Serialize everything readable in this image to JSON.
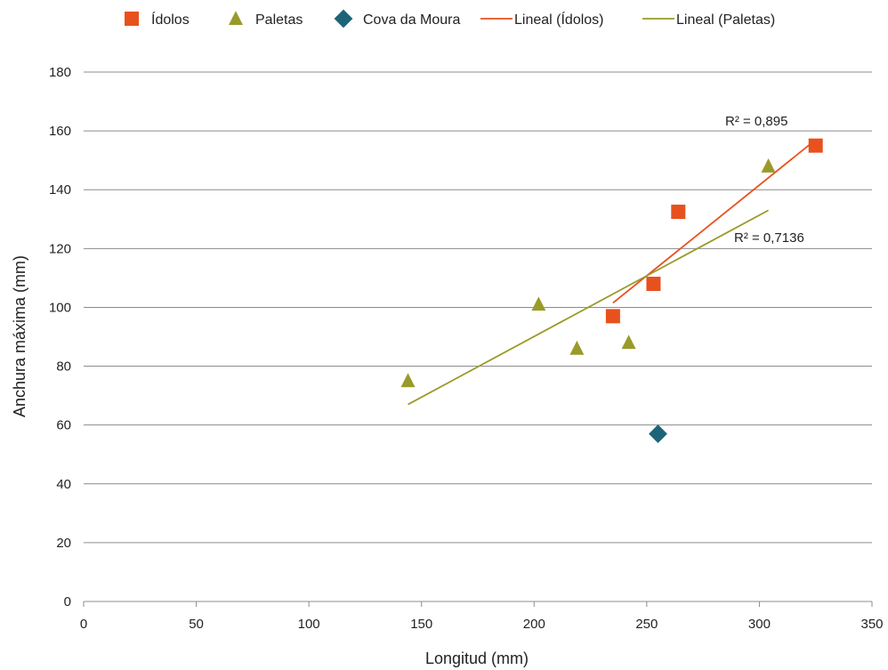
{
  "chart_data": {
    "type": "scatter",
    "xlabel": "Longitud (mm)",
    "ylabel": "Anchura máxima (mm)",
    "xlim": [
      0,
      350
    ],
    "ylim": [
      0,
      180
    ],
    "x_ticks": [
      0,
      50,
      100,
      150,
      200,
      250,
      300,
      350
    ],
    "y_ticks": [
      0,
      20,
      40,
      60,
      80,
      100,
      120,
      140,
      160,
      180
    ],
    "grid": "horizontal",
    "legend_position": "top",
    "series": [
      {
        "name": "Ídolos",
        "marker": "square",
        "color": "#E8511E",
        "points": [
          [
            235,
            97
          ],
          [
            253,
            108
          ],
          [
            264,
            132.5
          ],
          [
            325,
            155
          ]
        ]
      },
      {
        "name": "Paletas",
        "marker": "triangle",
        "color": "#9A9A2A",
        "points": [
          [
            144,
            75
          ],
          [
            202,
            101
          ],
          [
            219,
            86
          ],
          [
            242,
            88
          ],
          [
            304,
            148
          ]
        ]
      },
      {
        "name": "Cova da Moura",
        "marker": "diamond",
        "color": "#1D6478",
        "points": [
          [
            255,
            57
          ]
        ]
      }
    ],
    "trendlines": [
      {
        "name": "Lineal (Ídolos)",
        "color": "#E8511E",
        "x": [
          235,
          325
        ],
        "y": [
          101.5,
          157
        ],
        "r2_label": "R² = 0,895"
      },
      {
        "name": "Lineal (Paletas)",
        "color": "#9A9A2A",
        "x": [
          144,
          304
        ],
        "y": [
          67,
          133
        ],
        "r2_label": "R² = 0,7136"
      }
    ],
    "legend": [
      "Ídolos",
      "Paletas",
      "Cova da Moura",
      "Lineal (Ídolos)",
      "Lineal (Paletas)"
    ]
  }
}
